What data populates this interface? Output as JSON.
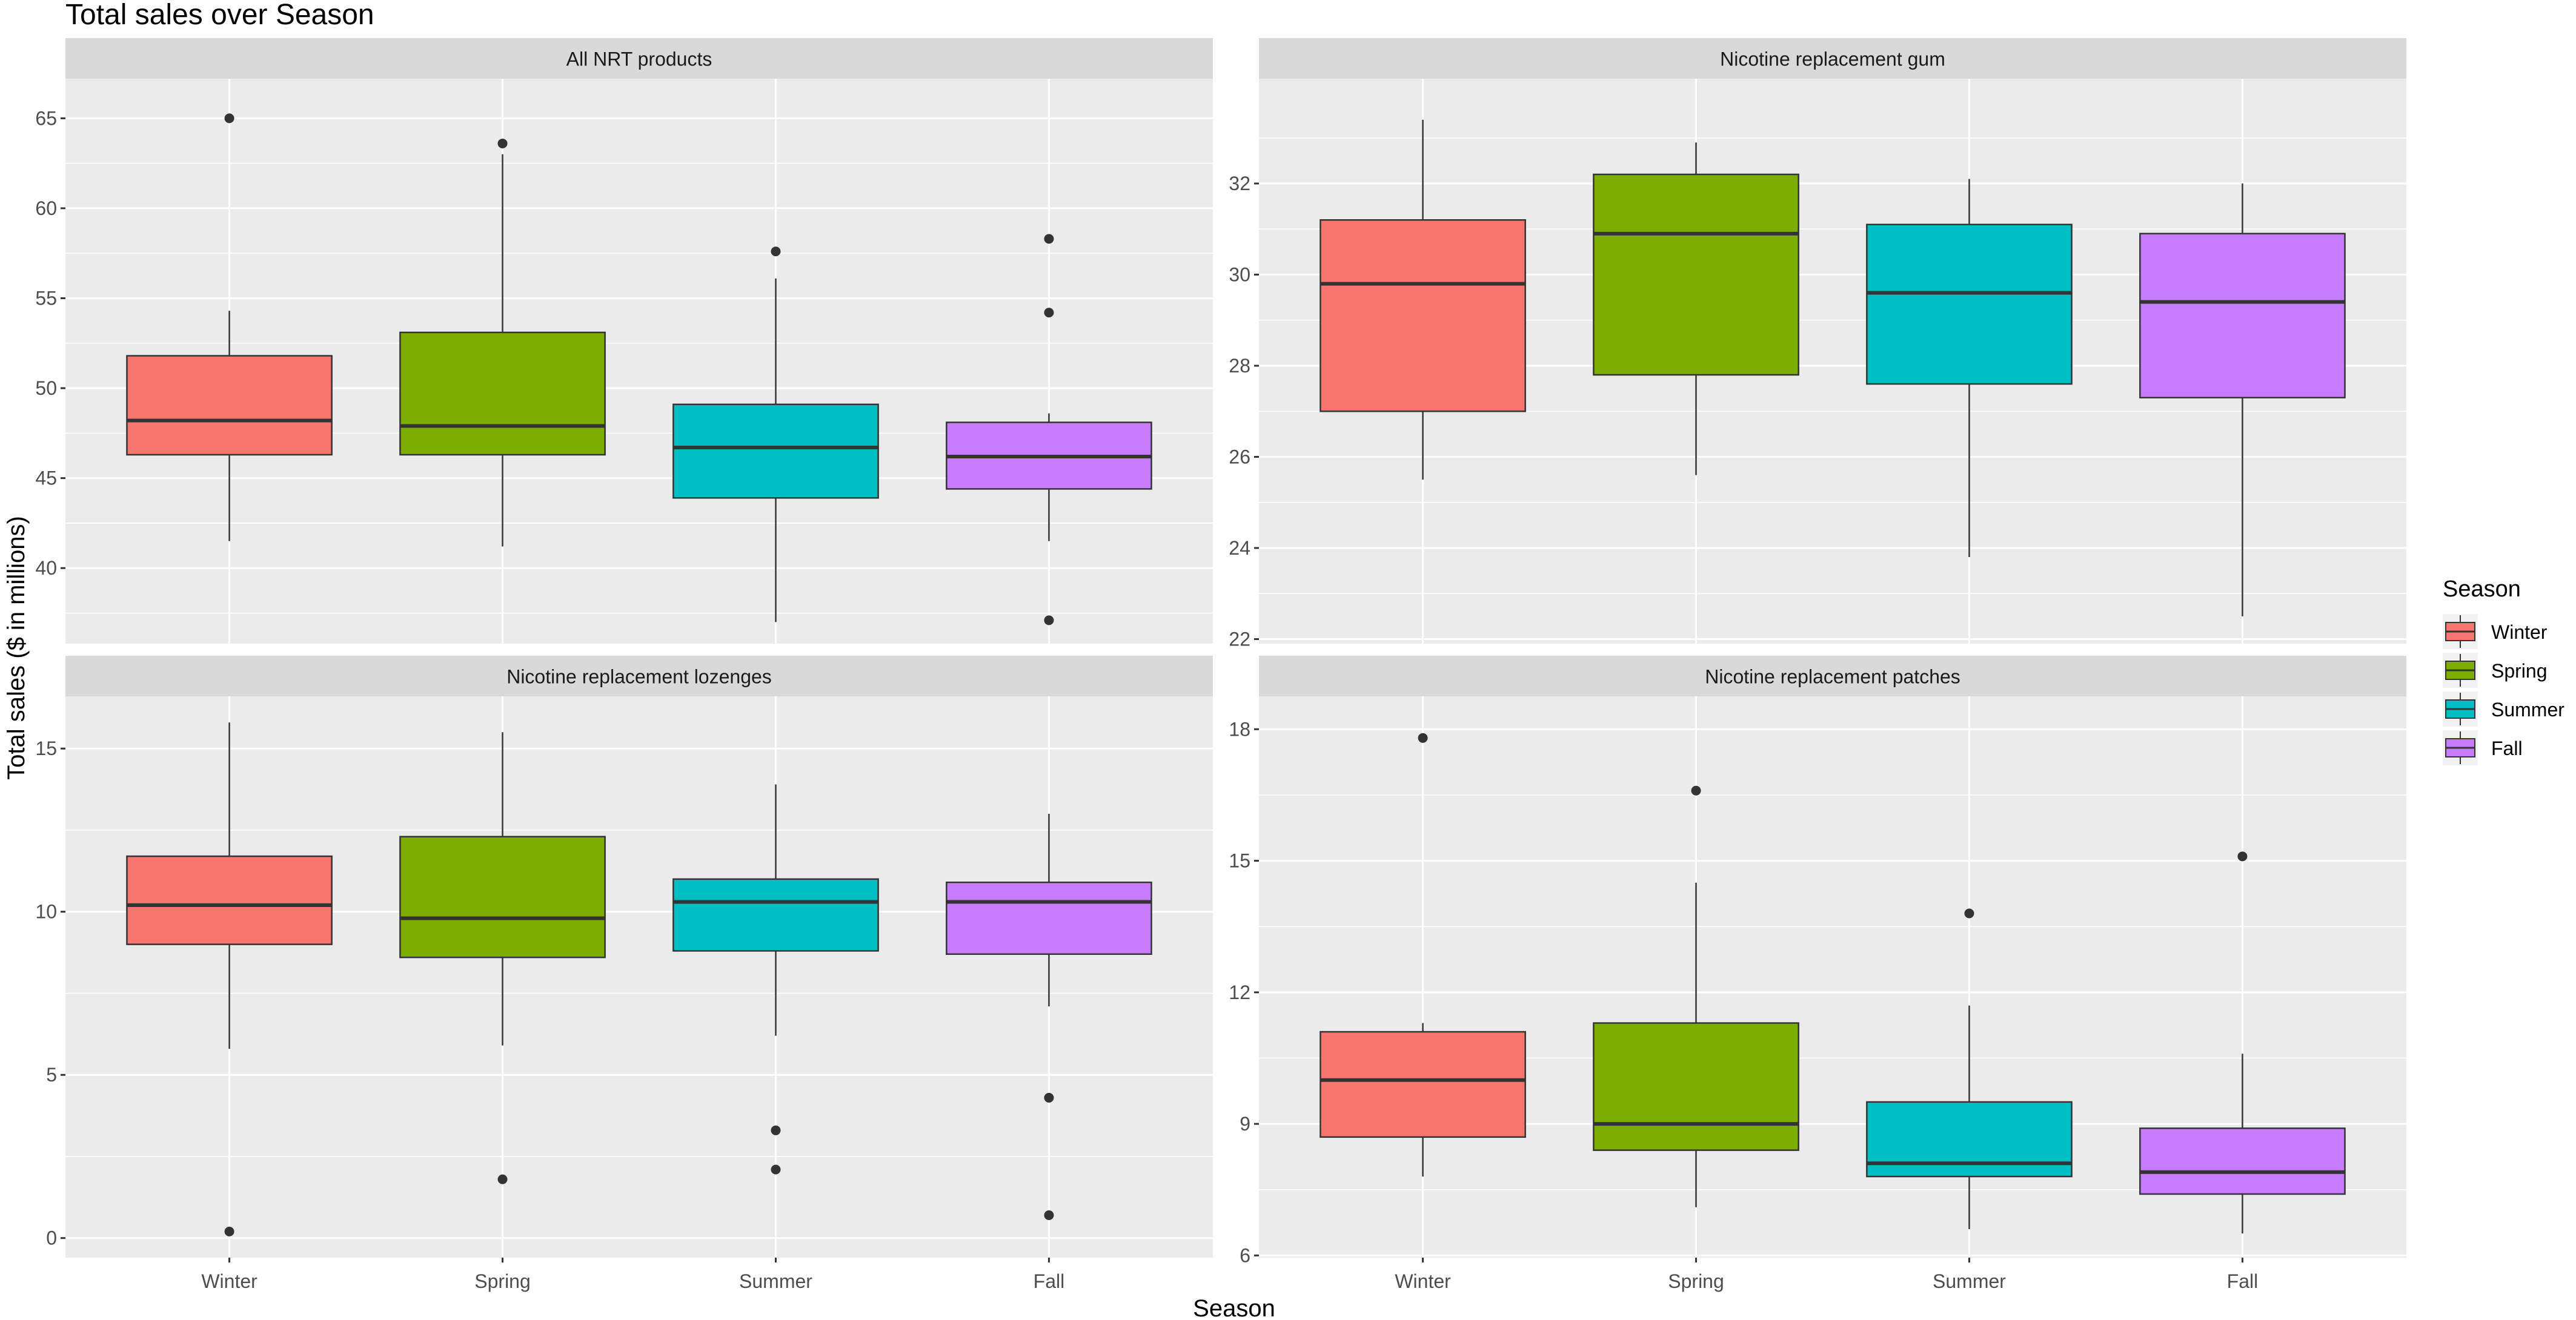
{
  "chart_data": {
    "type": "boxplot",
    "title": "Total sales over Season",
    "xlabel": "Season",
    "ylabel": "Total sales ($ in millions)",
    "categories": [
      "Winter",
      "Spring",
      "Summer",
      "Fall"
    ],
    "legend": {
      "title": "Season",
      "position": "right",
      "items": [
        {
          "label": "Winter",
          "color": "#F8766D"
        },
        {
          "label": "Spring",
          "color": "#7CAE00"
        },
        {
          "label": "Summer",
          "color": "#00BFC4"
        },
        {
          "label": "Fall",
          "color": "#C77CFF"
        }
      ]
    },
    "panels": [
      {
        "title": "All NRT products",
        "ylim": [
          35.8,
          67.2
        ],
        "yticks": [
          40,
          45,
          50,
          55,
          60,
          65
        ],
        "boxes": [
          {
            "category": "Winter",
            "whisker_low": 41.5,
            "q1": 46.3,
            "median": 48.2,
            "q3": 51.8,
            "whisker_high": 54.3,
            "outliers": [
              65.0
            ]
          },
          {
            "category": "Spring",
            "whisker_low": 41.2,
            "q1": 46.3,
            "median": 47.9,
            "q3": 53.1,
            "whisker_high": 63.0,
            "outliers": [
              63.6
            ]
          },
          {
            "category": "Summer",
            "whisker_low": 37.0,
            "q1": 43.9,
            "median": 46.7,
            "q3": 49.1,
            "whisker_high": 56.1,
            "outliers": [
              57.6
            ]
          },
          {
            "category": "Fall",
            "whisker_low": 41.5,
            "q1": 44.4,
            "median": 46.2,
            "q3": 48.1,
            "whisker_high": 48.6,
            "outliers": [
              58.3,
              54.2,
              37.1
            ]
          }
        ]
      },
      {
        "title": "Nicotine replacement gum",
        "ylim": [
          21.9,
          34.3
        ],
        "yticks": [
          22,
          24,
          26,
          28,
          30,
          32
        ],
        "boxes": [
          {
            "category": "Winter",
            "whisker_low": 25.5,
            "q1": 27.0,
            "median": 29.8,
            "q3": 31.2,
            "whisker_high": 33.4,
            "outliers": []
          },
          {
            "category": "Spring",
            "whisker_low": 25.6,
            "q1": 27.8,
            "median": 30.9,
            "q3": 32.2,
            "whisker_high": 32.9,
            "outliers": []
          },
          {
            "category": "Summer",
            "whisker_low": 23.8,
            "q1": 27.6,
            "median": 29.6,
            "q3": 31.1,
            "whisker_high": 32.1,
            "outliers": []
          },
          {
            "category": "Fall",
            "whisker_low": 22.5,
            "q1": 27.3,
            "median": 29.4,
            "q3": 30.9,
            "whisker_high": 32.0,
            "outliers": []
          }
        ]
      },
      {
        "title": "Nicotine replacement lozenges",
        "ylim": [
          -0.6,
          16.6
        ],
        "yticks": [
          0,
          5,
          10,
          15
        ],
        "boxes": [
          {
            "category": "Winter",
            "whisker_low": 5.8,
            "q1": 9.0,
            "median": 10.2,
            "q3": 11.7,
            "whisker_high": 15.8,
            "outliers": [
              0.2
            ]
          },
          {
            "category": "Spring",
            "whisker_low": 5.9,
            "q1": 8.6,
            "median": 9.8,
            "q3": 12.3,
            "whisker_high": 15.5,
            "outliers": [
              1.8
            ]
          },
          {
            "category": "Summer",
            "whisker_low": 6.2,
            "q1": 8.8,
            "median": 10.3,
            "q3": 11.0,
            "whisker_high": 13.9,
            "outliers": [
              3.3,
              2.1
            ]
          },
          {
            "category": "Fall",
            "whisker_low": 7.1,
            "q1": 8.7,
            "median": 10.3,
            "q3": 10.9,
            "whisker_high": 13.0,
            "outliers": [
              4.3,
              0.7
            ]
          }
        ]
      },
      {
        "title": "Nicotine replacement patches",
        "ylim": [
          5.95,
          18.75
        ],
        "yticks": [
          6,
          9,
          12,
          15,
          18
        ],
        "boxes": [
          {
            "category": "Winter",
            "whisker_low": 7.8,
            "q1": 8.7,
            "median": 10.0,
            "q3": 11.1,
            "whisker_high": 11.3,
            "outliers": [
              17.8
            ]
          },
          {
            "category": "Spring",
            "whisker_low": 7.1,
            "q1": 8.4,
            "median": 9.0,
            "q3": 11.3,
            "whisker_high": 14.5,
            "outliers": [
              16.6
            ]
          },
          {
            "category": "Summer",
            "whisker_low": 6.6,
            "q1": 7.8,
            "median": 8.1,
            "q3": 9.5,
            "whisker_high": 11.7,
            "outliers": [
              13.8
            ]
          },
          {
            "category": "Fall",
            "whisker_low": 6.5,
            "q1": 7.4,
            "median": 7.9,
            "q3": 8.9,
            "whisker_high": 10.6,
            "outliers": [
              15.1
            ]
          }
        ]
      }
    ]
  }
}
